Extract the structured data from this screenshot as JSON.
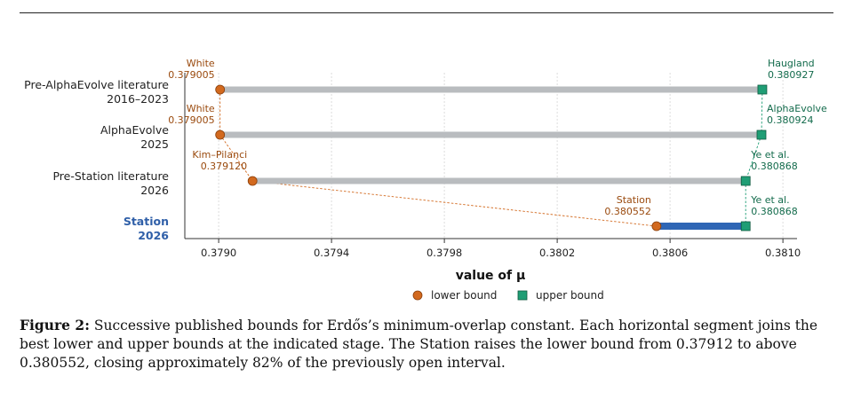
{
  "chart_data": {
    "type": "range",
    "xlabel": "value of μ",
    "xlim": [
      0.37888,
      0.38105
    ],
    "x_ticks": [
      "0.3790",
      "0.3794",
      "0.3798",
      "0.3802",
      "0.3806",
      "0.3810"
    ],
    "grid": "vertical-dotted",
    "legend": {
      "placement": "bottom-center",
      "entries": [
        {
          "label": "lower bound",
          "marker": "circle",
          "color": "#d2691e"
        },
        {
          "label": "upper bound",
          "marker": "square",
          "color": "#1f9e75"
        }
      ]
    },
    "colors": {
      "lower": "#d2691e",
      "upper": "#1f9e75",
      "segment": "#b9bcbf",
      "highlight_segment": "#2f66b5",
      "lower_text": "#9a4a0e",
      "upper_text": "#136b4c",
      "highlight_label": "#2f5fa8"
    },
    "rows": [
      {
        "label_line1": "Pre-AlphaEvolve literature",
        "label_line2": "2016–2023",
        "lower": 0.379005,
        "lower_name": "White",
        "lower_text": "0.379005",
        "upper": 0.380927,
        "upper_name": "Haugland",
        "upper_text": "0.380927",
        "highlight": false
      },
      {
        "label_line1": "AlphaEvolve",
        "label_line2": "2025",
        "lower": 0.379005,
        "lower_name": "White",
        "lower_text": "0.379005",
        "upper": 0.380924,
        "upper_name": "AlphaEvolve",
        "upper_text": "0.380924",
        "highlight": false
      },
      {
        "label_line1": "Pre-Station literature",
        "label_line2": "2026",
        "lower": 0.37912,
        "lower_name": "Kim–Pilanci",
        "lower_text": "0.379120",
        "upper": 0.380868,
        "upper_name": "Ye et al.",
        "upper_text": "0.380868",
        "highlight": false
      },
      {
        "label_line1": "Station",
        "label_line2": "2026",
        "lower": 0.380552,
        "lower_name": "Station",
        "lower_text": "0.380552",
        "upper": 0.380868,
        "upper_name": "Ye et al.",
        "upper_text": "0.380868",
        "highlight": true
      }
    ]
  },
  "caption": {
    "label": "Figure 2:",
    "text": "Successive published bounds for Erdős’s minimum-overlap constant. Each horizontal segment joins the best lower and upper bounds at the indicated stage. The Station raises the lower bound from 0.37912 to above 0.380552, closing approximately 82% of the previously open interval."
  }
}
